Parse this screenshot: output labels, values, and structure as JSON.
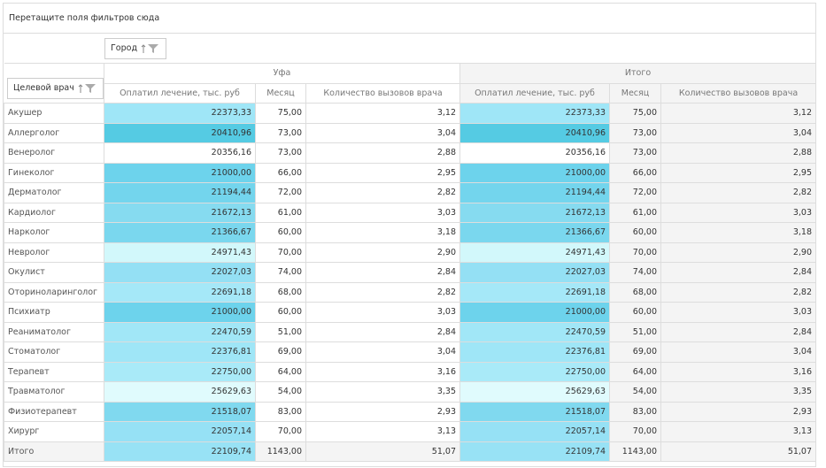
{
  "filter_area": "Перетащите поля фильтров сюда",
  "column_field": "Город",
  "row_field": "Целевой врач",
  "column_groups": [
    "Уфа",
    "Итого"
  ],
  "measures": [
    "Оплатил лечение, тыс. руб",
    "Месяц",
    "Количество вызовов врача"
  ],
  "rows": [
    {
      "label": "Акушер",
      "cells": [
        "22373,33",
        "75,00",
        "3,12",
        "22373,33",
        "75,00",
        "3,12"
      ],
      "color": "#9fe6f7"
    },
    {
      "label": "Аллерголог",
      "cells": [
        "20410,96",
        "73,00",
        "3,04",
        "20410,96",
        "73,00",
        "3,04"
      ],
      "color": "#55cbe3"
    },
    {
      "label": "Венеролог",
      "cells": [
        "20356,16",
        "73,00",
        "2,88",
        "20356,16",
        "73,00",
        "2,88"
      ],
      "color": "#ffffff"
    },
    {
      "label": "Гинеколог",
      "cells": [
        "21000,00",
        "66,00",
        "2,95",
        "21000,00",
        "66,00",
        "2,95"
      ],
      "color": "#6dd3ec"
    },
    {
      "label": "Дерматолог",
      "cells": [
        "21194,44",
        "72,00",
        "2,82",
        "21194,44",
        "72,00",
        "2,82"
      ],
      "color": "#73d5ed"
    },
    {
      "label": "Кардиолог",
      "cells": [
        "21672,13",
        "61,00",
        "3,03",
        "21672,13",
        "61,00",
        "3,03"
      ],
      "color": "#86dbf0"
    },
    {
      "label": "Нарколог",
      "cells": [
        "21366,67",
        "60,00",
        "3,18",
        "21366,67",
        "60,00",
        "3,18"
      ],
      "color": "#7ad7ee"
    },
    {
      "label": "Невролог",
      "cells": [
        "24971,43",
        "70,00",
        "2,90",
        "24971,43",
        "70,00",
        "2,90"
      ],
      "color": "#d2f8fb"
    },
    {
      "label": "Окулист",
      "cells": [
        "22027,03",
        "74,00",
        "2,84",
        "22027,03",
        "74,00",
        "2,84"
      ],
      "color": "#94e0f4"
    },
    {
      "label": "Оториноларинголог",
      "cells": [
        "22691,18",
        "68,00",
        "2,82",
        "22691,18",
        "68,00",
        "2,82"
      ],
      "color": "#a5e8f8"
    },
    {
      "label": "Психиатр",
      "cells": [
        "21000,00",
        "60,00",
        "3,03",
        "21000,00",
        "60,00",
        "3,03"
      ],
      "color": "#6dd3ec"
    },
    {
      "label": "Реаниматолог",
      "cells": [
        "22470,59",
        "51,00",
        "2,84",
        "22470,59",
        "51,00",
        "2,84"
      ],
      "color": "#a1e7f7"
    },
    {
      "label": "Стоматолог",
      "cells": [
        "22376,81",
        "69,00",
        "3,04",
        "22376,81",
        "69,00",
        "3,04"
      ],
      "color": "#9fe6f7"
    },
    {
      "label": "Терапевт",
      "cells": [
        "22750,00",
        "64,00",
        "3,16",
        "22750,00",
        "64,00",
        "3,16"
      ],
      "color": "#a9eaf8"
    },
    {
      "label": "Травматолог",
      "cells": [
        "25629,63",
        "54,00",
        "3,35",
        "25629,63",
        "54,00",
        "3,35"
      ],
      "color": "#e0fbfd"
    },
    {
      "label": "Физиотерапевт",
      "cells": [
        "21518,07",
        "83,00",
        "2,93",
        "21518,07",
        "83,00",
        "2,93"
      ],
      "color": "#80d9ef"
    },
    {
      "label": "Хирург",
      "cells": [
        "22057,14",
        "70,00",
        "3,13",
        "22057,14",
        "70,00",
        "3,13"
      ],
      "color": "#96e1f5"
    }
  ],
  "total": {
    "label": "Итого",
    "cells": [
      "22109,74",
      "1143,00",
      "51,07",
      "22109,74",
      "1143,00",
      "51,07"
    ],
    "color": "#98e2f5"
  }
}
